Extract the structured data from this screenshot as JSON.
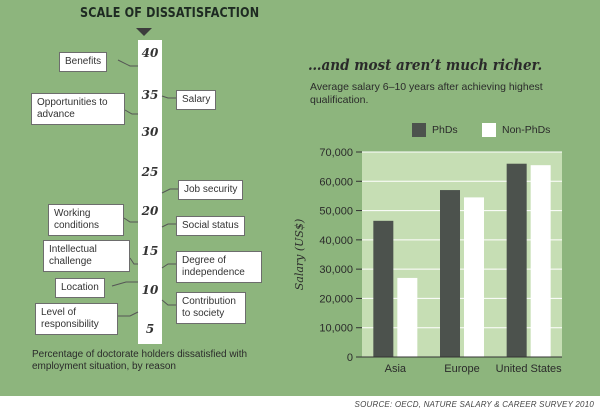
{
  "left_panel": {
    "scale_title": "SCALE OF DISSATISFACTION",
    "caption": "Percentage of doctorate holders dissatisfied with employment situation, by reason",
    "ticks": [
      "40",
      "35",
      "30",
      "25",
      "20",
      "15",
      "10",
      "5"
    ],
    "reasons": [
      {
        "label": "Benefits",
        "value": 39,
        "side": "left"
      },
      {
        "label": "Salary",
        "value": 34,
        "side": "right"
      },
      {
        "label": "Opportunities to advance",
        "value": 32,
        "side": "left"
      },
      {
        "label": "Job security",
        "value": 22,
        "side": "right"
      },
      {
        "label": "Working conditions",
        "value": 19,
        "side": "left"
      },
      {
        "label": "Social status",
        "value": 18,
        "side": "right"
      },
      {
        "label": "Intellectual challenge",
        "value": 14,
        "side": "left"
      },
      {
        "label": "Degree of independence",
        "value": 12,
        "side": "right"
      },
      {
        "label": "Location",
        "value": 11,
        "side": "left"
      },
      {
        "label": "Contribution to society",
        "value": 8,
        "side": "right"
      },
      {
        "label": "Level of responsibility",
        "value": 6,
        "side": "left"
      }
    ]
  },
  "right_panel": {
    "headline": "…and most aren’t much richer.",
    "subtitle": "Average salary 6–10 years after achieving highest qualification."
  },
  "source": "SOURCE: OECD, NATURE SALARY & CAREER SURVEY 2010",
  "colors": {
    "background": "#8db57d",
    "plot_background": "#c6deb4",
    "phd": "#4c524d",
    "non_phd": "#ffffff"
  },
  "chart_data": {
    "type": "bar",
    "categories": [
      "Asia",
      "Europe",
      "United States"
    ],
    "series": [
      {
        "name": "PhDs",
        "values": [
          46500,
          57000,
          66000
        ]
      },
      {
        "name": "Non-PhDs",
        "values": [
          27000,
          54500,
          65500
        ]
      }
    ],
    "ylabel": "Salary (US$)",
    "ylim": [
      0,
      70000
    ],
    "yticks": [
      0,
      10000,
      20000,
      30000,
      40000,
      50000,
      60000,
      70000
    ],
    "ytick_labels": [
      "0",
      "10,000",
      "20,000",
      "30,000",
      "40,000",
      "50,000",
      "60,000",
      "70,000"
    ],
    "grid": true,
    "legend": "top"
  }
}
